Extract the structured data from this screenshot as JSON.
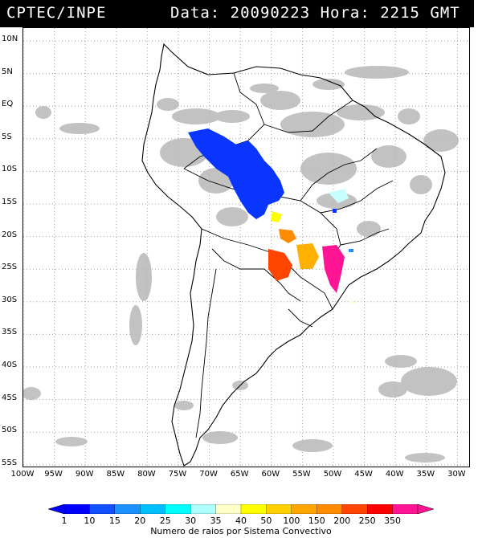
{
  "header": {
    "source": "CPTEC/INPE",
    "datetime": "Data: 20090223 Hora: 2215 GMT"
  },
  "lat_labels": [
    "10N",
    "5N",
    "EQ",
    "5S",
    "10S",
    "15S",
    "20S",
    "25S",
    "30S",
    "35S",
    "40S",
    "45S",
    "50S",
    "55S"
  ],
  "lon_labels": [
    "100W",
    "95W",
    "90W",
    "85W",
    "80W",
    "75W",
    "70W",
    "65W",
    "60W",
    "55W",
    "50W",
    "45W",
    "40W",
    "35W",
    "30W"
  ],
  "colorbar": {
    "labels": [
      "1",
      "10",
      "15",
      "20",
      "25",
      "30",
      "35",
      "40",
      "50",
      "100",
      "150",
      "200",
      "250",
      "350"
    ],
    "colors": [
      "#0000ff",
      "#1050ff",
      "#1e90ff",
      "#00bfff",
      "#00ffff",
      "#b0ffff",
      "#ffffc8",
      "#ffff00",
      "#ffd000",
      "#ffa500",
      "#ff8c00",
      "#ff4500",
      "#ff0000",
      "#ff1493"
    ],
    "caption": "Numero de raios por Sistema Convectivo"
  },
  "colors": {
    "cloud": "#b4b4b4",
    "land_line": "#000000",
    "grid": "#999999"
  }
}
